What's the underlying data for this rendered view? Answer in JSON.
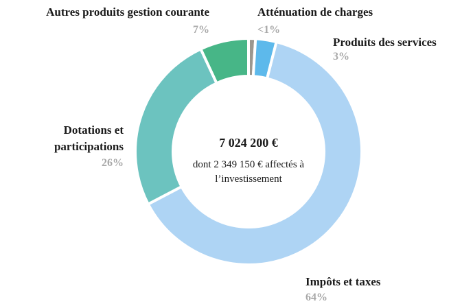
{
  "chart_data": {
    "type": "donut",
    "center_label": "7 024 200 €",
    "center_sublabel": "dont 2 349 150 € affectés à l’investissement",
    "categories": [
      "Atténuation de charges",
      "Produits des services",
      "Impôts et taxes",
      "Dotations et participations",
      "Autres produits gestion courante"
    ],
    "values": [
      1,
      3,
      64,
      26,
      7
    ],
    "value_labels": [
      "<1%",
      "3%",
      "64%",
      "26%",
      "7%"
    ],
    "colors": [
      "#9b978f",
      "#5db9eb",
      "#aed4f4",
      "#6cc3bf",
      "#47b687"
    ]
  }
}
